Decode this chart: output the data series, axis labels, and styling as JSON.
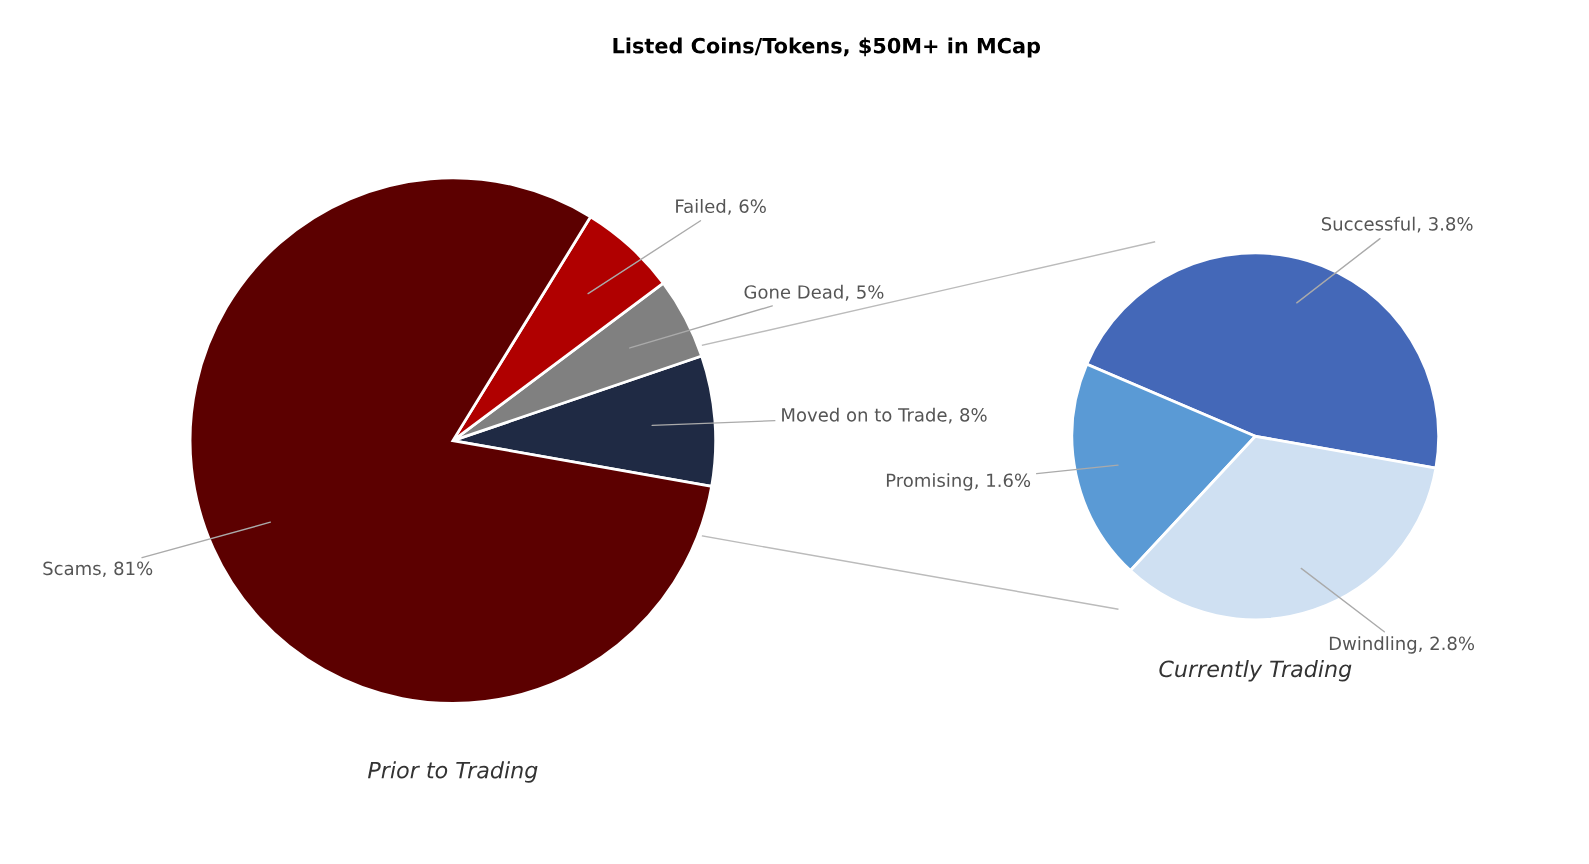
{
  "chart_data": [
    {
      "type": "pie",
      "title": "Listed Coins/Tokens, $50M+ in MCap",
      "xlabel": "Prior to Trading",
      "categories": [
        "Moved on to Trade",
        "Gone Dead",
        "Failed",
        "Scams"
      ],
      "values": [
        8,
        5,
        6,
        81
      ],
      "value_labels": [
        "8%",
        "5%",
        "6%",
        "81%"
      ],
      "colors": [
        "#1f2a44",
        "#808080",
        "#b00000",
        "#5c0000"
      ]
    },
    {
      "type": "pie",
      "xlabel": "Currently Trading",
      "categories": [
        "Successful",
        "Promising",
        "Dwindling"
      ],
      "values": [
        3.8,
        1.6,
        2.8
      ],
      "value_labels": [
        "3.8%",
        "1.6%",
        "2.8%"
      ],
      "colors": [
        "#4468b8",
        "#5a9ad5",
        "#cfe0f2"
      ]
    }
  ]
}
